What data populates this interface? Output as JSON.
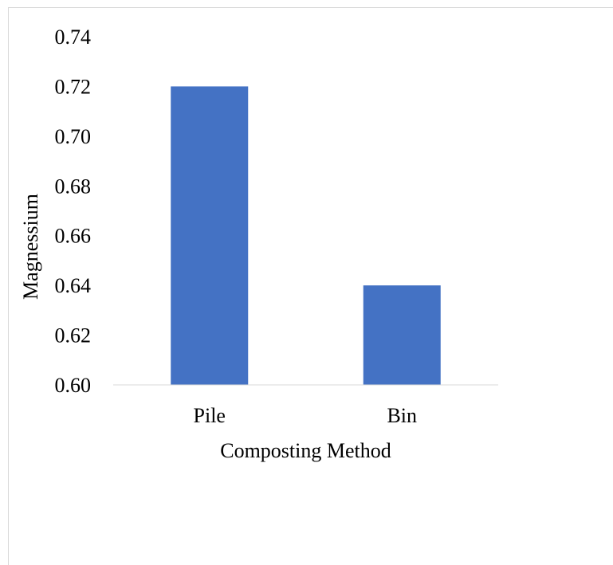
{
  "chart_data": {
    "type": "bar",
    "title": "",
    "xlabel": "Composting Method",
    "ylabel": "Magnessium",
    "categories": [
      "Pile",
      "Bin"
    ],
    "values": [
      0.72,
      0.64
    ],
    "ylim": [
      0.6,
      0.74
    ],
    "yticks": [
      "0.60",
      "0.62",
      "0.64",
      "0.66",
      "0.68",
      "0.70",
      "0.72",
      "0.74"
    ],
    "grid": false,
    "legend": "none",
    "colors": {
      "bar": "#4472C4",
      "axis": "#d9d9d9",
      "text": "#000000"
    }
  }
}
